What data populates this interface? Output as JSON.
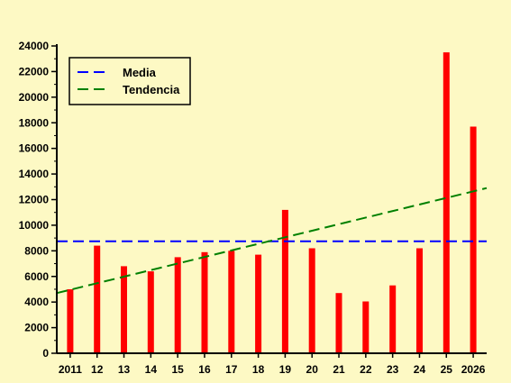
{
  "chart_data": {
    "type": "bar",
    "categories": [
      "2011",
      "12",
      "13",
      "14",
      "15",
      "16",
      "17",
      "18",
      "19",
      "20",
      "21",
      "22",
      "23",
      "24",
      "25",
      "2026"
    ],
    "series": [
      {
        "values": [
          5000,
          8400,
          6800,
          6400,
          7500,
          7900,
          8000,
          7700,
          11200,
          8200,
          4700,
          4050,
          5300,
          8200,
          23500,
          17700
        ],
        "color": "#ff0000"
      }
    ],
    "lines": [
      {
        "name": "Media",
        "type": "horizontal",
        "y": 8750,
        "color": "#0000ff",
        "style": "dashed"
      },
      {
        "name": "Tendencia",
        "type": "linear",
        "y_start": 4700,
        "y_end": 12900,
        "color": "#008000",
        "style": "dashed"
      }
    ],
    "yticks": [
      0,
      2000,
      4000,
      6000,
      8000,
      10000,
      12000,
      14000,
      16000,
      18000,
      20000,
      22000,
      24000
    ],
    "ylim": [
      0,
      24000
    ],
    "grid": false,
    "legend_position": "top-left",
    "background_color": "#fdf9c4"
  }
}
